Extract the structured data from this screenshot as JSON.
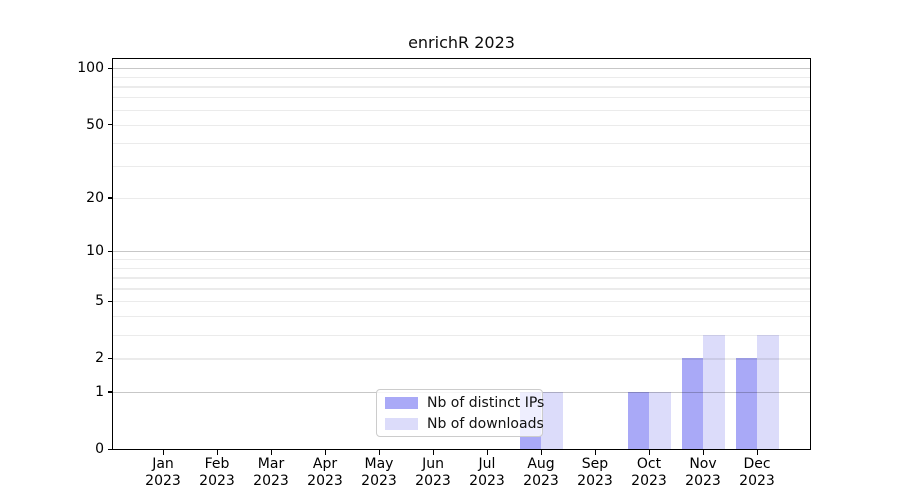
{
  "chart_data": {
    "type": "bar",
    "title": "enrichR 2023",
    "categories": [
      "Jan 2023",
      "Feb 2023",
      "Mar 2023",
      "Apr 2023",
      "May 2023",
      "Jun 2023",
      "Jul 2023",
      "Aug 2023",
      "Sep 2023",
      "Oct 2023",
      "Nov 2023",
      "Dec 2023"
    ],
    "series": [
      {
        "name": "Nb of distinct IPs",
        "color": "#a9a9f7",
        "values": [
          0,
          0,
          0,
          0,
          0,
          0,
          0,
          1,
          0,
          1,
          2,
          2
        ]
      },
      {
        "name": "Nb of downloads",
        "color": "#dcdcfa",
        "values": [
          0,
          0,
          0,
          0,
          0,
          0,
          0,
          1,
          0,
          1,
          3,
          3
        ]
      }
    ],
    "yscale": "log10(1+x)",
    "ylim": [
      0,
      112
    ],
    "yticks": [
      0,
      1,
      2,
      5,
      10,
      20,
      50,
      100
    ],
    "grid_major_at": [
      1,
      10,
      100
    ],
    "grid_minor_at": [
      2,
      3,
      4,
      5,
      6,
      7,
      8,
      9,
      20,
      30,
      40,
      50,
      60,
      70,
      80,
      90
    ],
    "legend": {
      "location": "lower center"
    },
    "grid": true
  }
}
